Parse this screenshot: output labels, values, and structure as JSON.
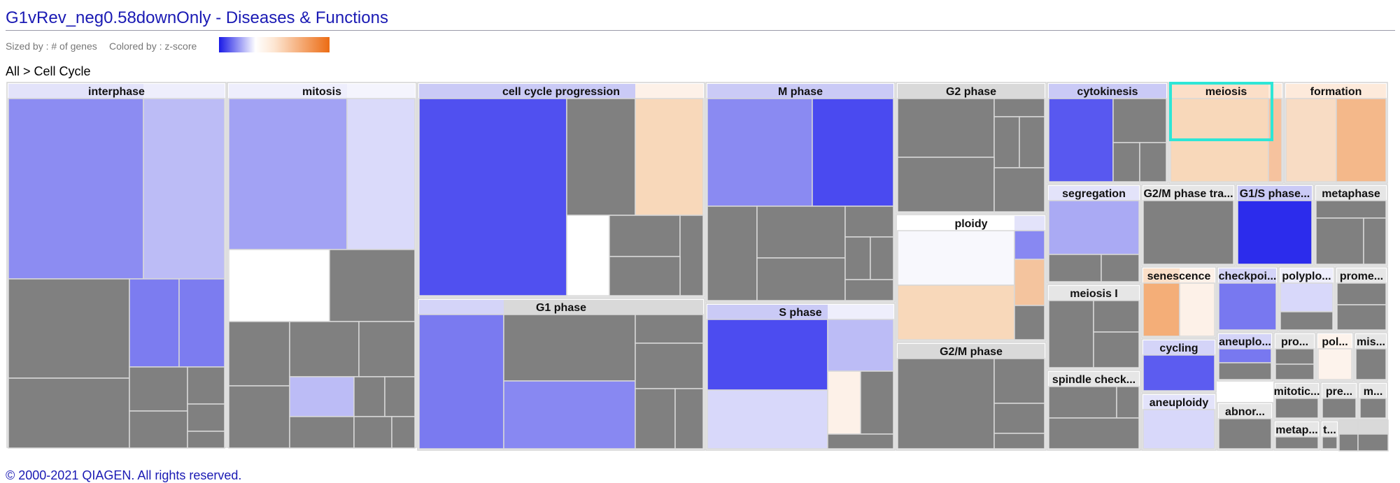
{
  "title": "G1vRev_neg0.58downOnly - Diseases & Functions",
  "legend": {
    "sized_by": "Sized by : # of genes",
    "colored_by": "Colored by : z-score",
    "scale_colors": [
      "#1a1ae6",
      "#ffffff",
      "#fde6d2",
      "#ec6c14"
    ]
  },
  "breadcrumb": "All > Cell Cycle",
  "copyright": "© 2000-2021 QIAGEN. All rights reserved.",
  "colors": {
    "no_zscore": "#808080",
    "border": "#d4d4d4",
    "selected_outline": "#2ee6d6",
    "header_gray": "#d9d9d9"
  },
  "chart_data": {
    "type": "treemap",
    "title": "",
    "sized_by": "# of genes",
    "colored_by": "z-score",
    "path": [
      "All",
      "Cell Cycle"
    ],
    "categories": [
      {
        "label": "interphase",
        "header": "#e3e3fa"
      },
      {
        "label": "mitosis",
        "header": "#eeeefc"
      },
      {
        "label": "cell cycle progression",
        "header": "#cacaf6"
      },
      {
        "label": "M phase",
        "header": "#cacaf6"
      },
      {
        "label": "G2 phase",
        "header": "#d9d9d9"
      },
      {
        "label": "cytokinesis",
        "header": "#cacaf6"
      },
      {
        "label": "meiosis",
        "header": "#fbdfc8",
        "selected": true
      },
      {
        "label": "formation",
        "header": "#fdeadb"
      },
      {
        "label": "G1 phase",
        "header": "#d9d9d9"
      },
      {
        "label": "S phase",
        "header": "#cacaf6"
      },
      {
        "label": "ploidy",
        "header": "#ffffff"
      },
      {
        "label": "segregation",
        "header": "#e3e3fa"
      },
      {
        "label": "G2/M phase tra...",
        "header": "#e6e6e6"
      },
      {
        "label": "G1/S phase...",
        "header": "#cacaf6"
      },
      {
        "label": "metaphase",
        "header": "#e6e6e6"
      },
      {
        "label": "G2/M phase",
        "header": "#d9d9d9"
      },
      {
        "label": "meiosis I",
        "header": "#e6e6e6"
      },
      {
        "label": "senescence",
        "header": "#fbdfc8"
      },
      {
        "label": "checkpoi...",
        "header": "#d4d4f8"
      },
      {
        "label": "polyplo...",
        "header": "#eeeefc"
      },
      {
        "label": "prome...",
        "header": "#e6e6e6"
      },
      {
        "label": "spindle check...",
        "header": "#e6e6e6"
      },
      {
        "label": "cycling",
        "header": "#d4d4f8"
      },
      {
        "label": "aneuplo...",
        "header": "#d4d4f8"
      },
      {
        "label": "pro...",
        "header": "#e6e6e6"
      },
      {
        "label": "pol...",
        "header": "#fdf3ec"
      },
      {
        "label": "mis...",
        "header": "#e6e6e6"
      },
      {
        "label": "aneuploidy",
        "header": "#e3e3fa"
      },
      {
        "label": "abnor...",
        "header": "#e6e6e6"
      },
      {
        "label": "mitotic...",
        "header": "#e6e6e6"
      },
      {
        "label": "pre...",
        "header": "#e6e6e6"
      },
      {
        "label": "m...",
        "header": "#e6e6e6"
      },
      {
        "label": "metap...",
        "header": "#e6e6e6"
      },
      {
        "label": "t...",
        "header": "#e6e6e6"
      }
    ]
  }
}
